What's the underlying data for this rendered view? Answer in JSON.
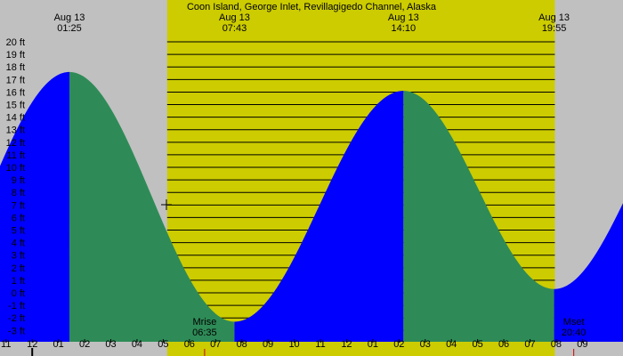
{
  "chart_data": {
    "type": "area",
    "title": "Coon Island, George Inlet, Revillagigedo Channel, Alaska",
    "xlabel": "",
    "ylabel": "",
    "ylim": [
      -3.9,
      20.5
    ],
    "xlim": [
      -1.23,
      22.55
    ],
    "grid": true,
    "colors": {
      "background": "#c0c0c0",
      "daylight": "#cccc00",
      "rising": "#0000ff",
      "falling": "#2e8b57",
      "gridline": "#000000"
    },
    "daylight_span_hours": [
      5.15,
      19.95
    ],
    "y_ticks": [
      "20 ft",
      "19 ft",
      "18 ft",
      "17 ft",
      "16 ft",
      "15 ft",
      "14 ft",
      "13 ft",
      "12 ft",
      "11 ft",
      "10 ft",
      "9 ft",
      "8 ft",
      "7 ft",
      "6 ft",
      "5 ft",
      "4 ft",
      "3 ft",
      "2 ft",
      "1 ft",
      "0 ft",
      "-1 ft",
      "-2 ft",
      "-3 ft"
    ],
    "y_tick_values": [
      20,
      19,
      18,
      17,
      16,
      15,
      14,
      13,
      12,
      11,
      10,
      9,
      8,
      7,
      6,
      5,
      4,
      3,
      2,
      1,
      0,
      -1,
      -2,
      -3
    ],
    "x_ticks": [
      "11",
      "12",
      "01",
      "02",
      "03",
      "04",
      "05",
      "06",
      "07",
      "08",
      "09",
      "10",
      "11",
      "12",
      "01",
      "02",
      "03",
      "04",
      "05",
      "06",
      "07",
      "08",
      "09"
    ],
    "x_tick_hours": [
      -1,
      0,
      1,
      2,
      3,
      4,
      5,
      6,
      7,
      8,
      9,
      10,
      11,
      12,
      13,
      14,
      15,
      16,
      17,
      18,
      19,
      20,
      21
    ],
    "extremes": [
      {
        "date": "Aug 13",
        "time": "01:25",
        "hour": 1.42,
        "height": 17.6
      },
      {
        "date": "Aug 13",
        "time": "07:43",
        "hour": 7.72,
        "height": -2.3
      },
      {
        "date": "Aug 13",
        "time": "14:10",
        "hour": 14.17,
        "height": 16.1
      },
      {
        "date": "Aug 13",
        "time": "19:55",
        "hour": 19.92,
        "height": 0.3
      }
    ],
    "start_height": 13.0,
    "end_height": 2.9,
    "moon_events": [
      {
        "label": "Mrise",
        "time": "06:35",
        "hour": 6.58
      },
      {
        "label": "Mset",
        "time": "20:40",
        "hour": 20.67
      }
    ]
  }
}
